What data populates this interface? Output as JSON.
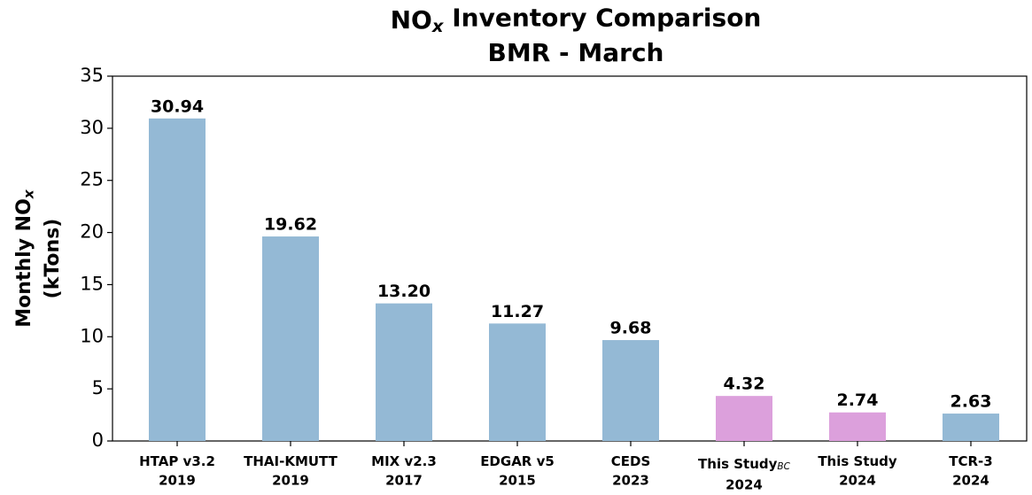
{
  "chart_data": {
    "type": "bar",
    "title": [
      {
        "text": "NO"
      },
      {
        "text": "x",
        "sub": true
      },
      {
        "text": " Inventory Comparison"
      }
    ],
    "subtitle": "BMR - March",
    "ylabel": [
      {
        "text": "Monthly NO"
      },
      {
        "text": "x",
        "sub": true
      }
    ],
    "ylabel_unit": "(kTons)",
    "categories": [
      {
        "name": "HTAP v3.2",
        "year": "2019"
      },
      {
        "name": "THAI-KMUTT",
        "year": "2019"
      },
      {
        "name": "MIX v2.3",
        "year": "2017"
      },
      {
        "name": "EDGAR v5",
        "year": "2015"
      },
      {
        "name": "CEDS",
        "year": "2023"
      },
      {
        "name": "This Study",
        "sub": "BC",
        "year": "2024"
      },
      {
        "name": "This Study",
        "year": "2024"
      },
      {
        "name": "TCR-3",
        "year": "2024"
      }
    ],
    "values": [
      30.94,
      19.62,
      13.2,
      11.27,
      9.68,
      4.32,
      2.74,
      2.63
    ],
    "value_labels": [
      "30.94",
      "19.62",
      "13.20",
      "11.27",
      "9.68",
      "4.32",
      "2.74",
      "2.63"
    ],
    "colors": [
      "#94b9d5",
      "#94b9d5",
      "#94b9d5",
      "#94b9d5",
      "#94b9d5",
      "#dca0dc",
      "#dca0dc",
      "#94b9d5"
    ],
    "ylim": [
      0,
      35
    ],
    "yticks": [
      0,
      5,
      10,
      15,
      20,
      25,
      30,
      35
    ],
    "grid": false
  }
}
